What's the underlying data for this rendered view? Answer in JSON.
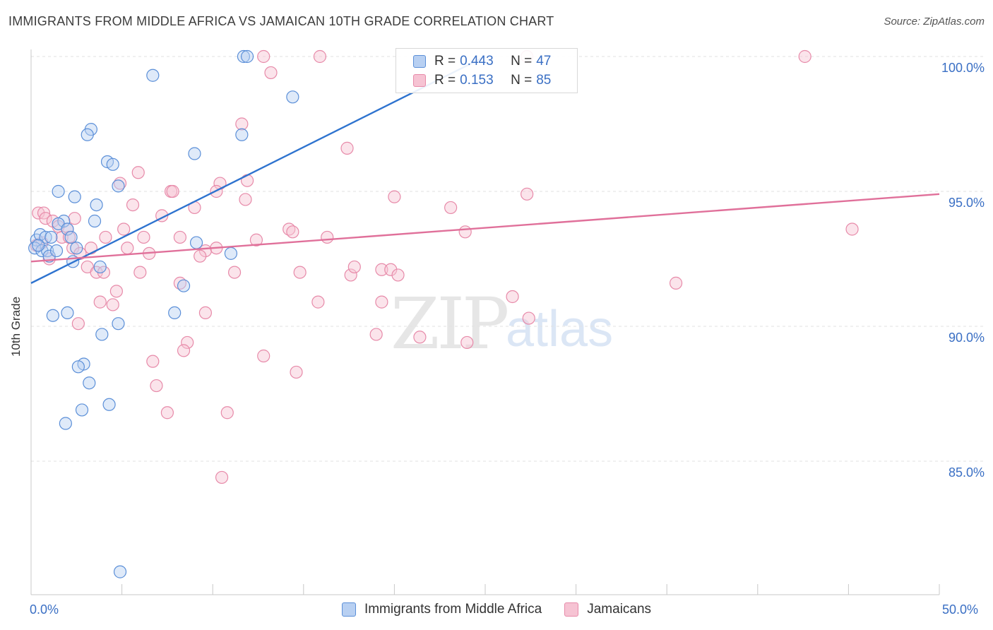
{
  "title": "IMMIGRANTS FROM MIDDLE AFRICA VS JAMAICAN 10TH GRADE CORRELATION CHART",
  "source": "Source: ZipAtlas.com",
  "watermark": {
    "zip": "ZIP",
    "atlas": "atlas"
  },
  "legend": {
    "row1": {
      "r_label": "R =",
      "r_value": "0.443",
      "n_label": "N =",
      "n_value": "47"
    },
    "row2": {
      "r_label": "R =",
      "r_value": "0.153",
      "n_label": "N =",
      "n_value": "85"
    }
  },
  "bottom_legend": {
    "series1": "Immigrants from Middle Africa",
    "series2": "Jamaicans"
  },
  "colors": {
    "blue_fill": "#b8d0f2",
    "blue_stroke": "#5b8fd8",
    "blue_line": "#2e73cf",
    "pink_fill": "#f6c3d3",
    "pink_stroke": "#e78aa9",
    "pink_line": "#e0709a",
    "tick_label": "#3a6fc4"
  },
  "chart_data": {
    "type": "scatter",
    "title": "IMMIGRANTS FROM MIDDLE AFRICA VS JAMAICAN 10TH GRADE CORRELATION CHART",
    "xlabel": "",
    "ylabel": "10th Grade",
    "xlim": [
      0,
      50
    ],
    "ylim": [
      80.5,
      101
    ],
    "y_ticks": [
      {
        "value": 85,
        "label": "85.0%"
      },
      {
        "value": 90,
        "label": "90.0%"
      },
      {
        "value": 95,
        "label": "95.0%"
      },
      {
        "value": 100,
        "label": "100.0%"
      }
    ],
    "x_tick_labels": {
      "min": "0.0%",
      "max": "50.0%"
    },
    "grid": true,
    "series": [
      {
        "name": "Immigrants from Middle Africa",
        "color": "blue",
        "trend": {
          "x1": 0,
          "y1": 91.6,
          "x2": 25,
          "y2": 100.0
        },
        "points": [
          [
            11.7,
            100.0
          ],
          [
            11.9,
            100.0
          ],
          [
            6.7,
            99.3
          ],
          [
            14.4,
            98.5
          ],
          [
            3.3,
            97.3
          ],
          [
            3.1,
            97.1
          ],
          [
            11.6,
            97.1
          ],
          [
            9.0,
            96.4
          ],
          [
            4.2,
            96.1
          ],
          [
            4.5,
            96.0
          ],
          [
            4.8,
            95.2
          ],
          [
            1.5,
            95.0
          ],
          [
            2.4,
            94.8
          ],
          [
            3.6,
            94.5
          ],
          [
            1.8,
            93.9
          ],
          [
            1.5,
            93.8
          ],
          [
            2.0,
            93.6
          ],
          [
            3.5,
            93.9
          ],
          [
            0.3,
            93.2
          ],
          [
            0.5,
            93.4
          ],
          [
            0.8,
            93.3
          ],
          [
            1.1,
            93.3
          ],
          [
            2.2,
            93.3
          ],
          [
            0.2,
            92.9
          ],
          [
            0.6,
            92.8
          ],
          [
            0.9,
            92.8
          ],
          [
            2.5,
            92.9
          ],
          [
            1.0,
            92.6
          ],
          [
            2.3,
            92.4
          ],
          [
            3.8,
            92.2
          ],
          [
            9.1,
            93.1
          ],
          [
            11.0,
            92.7
          ],
          [
            8.4,
            91.5
          ],
          [
            2.0,
            90.5
          ],
          [
            1.2,
            90.4
          ],
          [
            7.9,
            90.5
          ],
          [
            4.8,
            90.1
          ],
          [
            3.9,
            89.7
          ],
          [
            2.9,
            88.6
          ],
          [
            2.6,
            88.5
          ],
          [
            3.2,
            87.9
          ],
          [
            4.3,
            87.1
          ],
          [
            2.8,
            86.9
          ],
          [
            1.9,
            86.4
          ],
          [
            4.9,
            80.9
          ],
          [
            0.4,
            93.0
          ],
          [
            1.4,
            92.8
          ]
        ]
      },
      {
        "name": "Jamaicans",
        "color": "pink",
        "trend": {
          "x1": 0,
          "y1": 92.4,
          "x2": 50,
          "y2": 94.9
        },
        "points": [
          [
            12.8,
            100.0
          ],
          [
            15.9,
            100.0
          ],
          [
            42.6,
            100.0
          ],
          [
            27.3,
            100.0
          ],
          [
            13.2,
            99.4
          ],
          [
            11.6,
            97.5
          ],
          [
            17.4,
            96.6
          ],
          [
            5.9,
            95.7
          ],
          [
            4.9,
            95.3
          ],
          [
            10.4,
            95.3
          ],
          [
            11.9,
            95.4
          ],
          [
            7.7,
            95.0
          ],
          [
            10.2,
            95.0
          ],
          [
            7.8,
            95.0
          ],
          [
            11.8,
            94.7
          ],
          [
            20.0,
            94.8
          ],
          [
            27.3,
            94.9
          ],
          [
            5.6,
            94.5
          ],
          [
            9.0,
            94.4
          ],
          [
            23.1,
            94.4
          ],
          [
            0.4,
            94.2
          ],
          [
            0.7,
            94.2
          ],
          [
            0.8,
            94.0
          ],
          [
            1.2,
            93.9
          ],
          [
            2.4,
            94.0
          ],
          [
            7.2,
            94.1
          ],
          [
            1.5,
            93.7
          ],
          [
            2.0,
            93.6
          ],
          [
            5.1,
            93.6
          ],
          [
            14.2,
            93.6
          ],
          [
            14.4,
            93.5
          ],
          [
            23.9,
            93.5
          ],
          [
            45.2,
            93.6
          ],
          [
            1.7,
            93.3
          ],
          [
            2.1,
            93.3
          ],
          [
            4.1,
            93.3
          ],
          [
            6.2,
            93.3
          ],
          [
            8.2,
            93.3
          ],
          [
            12.4,
            93.2
          ],
          [
            16.3,
            93.3
          ],
          [
            0.3,
            93.0
          ],
          [
            0.6,
            93.1
          ],
          [
            2.3,
            92.9
          ],
          [
            3.3,
            92.9
          ],
          [
            5.3,
            92.9
          ],
          [
            9.6,
            92.8
          ],
          [
            10.2,
            92.9
          ],
          [
            1.0,
            92.5
          ],
          [
            2.7,
            92.7
          ],
          [
            6.5,
            92.7
          ],
          [
            9.3,
            92.6
          ],
          [
            3.1,
            92.2
          ],
          [
            3.6,
            92.0
          ],
          [
            4.0,
            92.0
          ],
          [
            6.0,
            92.0
          ],
          [
            11.2,
            92.0
          ],
          [
            14.8,
            92.0
          ],
          [
            17.6,
            91.9
          ],
          [
            17.8,
            92.2
          ],
          [
            19.3,
            92.1
          ],
          [
            19.8,
            92.1
          ],
          [
            20.2,
            91.9
          ],
          [
            35.5,
            91.6
          ],
          [
            8.2,
            91.6
          ],
          [
            4.7,
            91.3
          ],
          [
            3.8,
            90.9
          ],
          [
            4.5,
            90.8
          ],
          [
            15.8,
            90.9
          ],
          [
            19.3,
            90.9
          ],
          [
            26.5,
            91.1
          ],
          [
            9.6,
            90.5
          ],
          [
            27.4,
            90.3
          ],
          [
            2.6,
            90.1
          ],
          [
            19.0,
            89.7
          ],
          [
            21.4,
            89.6
          ],
          [
            24.0,
            89.4
          ],
          [
            8.6,
            89.4
          ],
          [
            8.4,
            89.1
          ],
          [
            12.8,
            88.9
          ],
          [
            6.7,
            88.7
          ],
          [
            14.6,
            88.3
          ],
          [
            6.9,
            87.8
          ],
          [
            7.5,
            86.8
          ],
          [
            10.8,
            86.8
          ],
          [
            10.5,
            84.4
          ]
        ]
      }
    ]
  }
}
